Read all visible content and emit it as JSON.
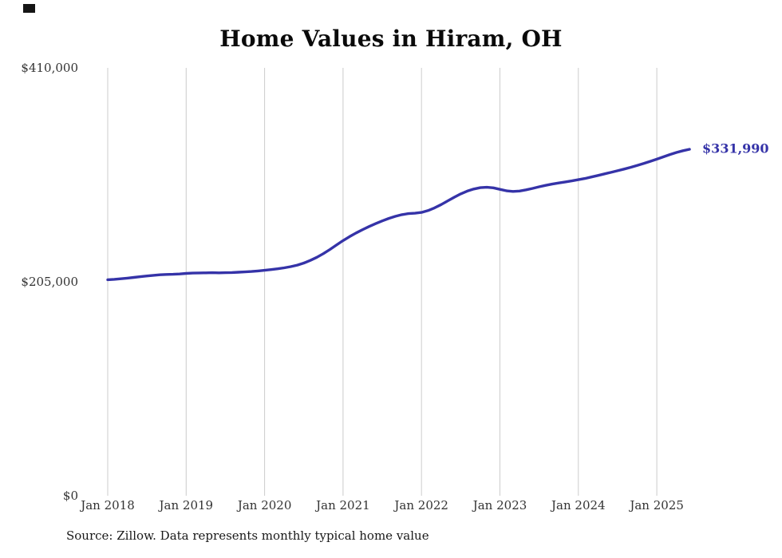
{
  "chart_data": {
    "type": "line",
    "title": "Home Values in Hiram, OH",
    "source": "Source: Zillow. Data represents monthly typical home value",
    "end_label": "$331,990",
    "line_color": "#3533a8",
    "grid_color": "#cccccc",
    "grid": "vertical-only",
    "legend": "none",
    "x_start": "Jan 2018",
    "x_interval": "monthly",
    "x_ticks": [
      "Jan 2018",
      "Jan 2019",
      "Jan 2020",
      "Jan 2021",
      "Jan 2022",
      "Jan 2023",
      "Jan 2024",
      "Jan 2025"
    ],
    "ylim": [
      0,
      410000
    ],
    "y_ticks": [
      {
        "value": 0,
        "label": "$0"
      },
      {
        "value": 205000,
        "label": "$205,000"
      },
      {
        "value": 410000,
        "label": "$410,000"
      }
    ],
    "series": [
      {
        "name": "Typical home value",
        "values": [
          207000,
          207400,
          207900,
          208500,
          209200,
          209900,
          210600,
          211200,
          211700,
          212000,
          212200,
          212500,
          213000,
          213300,
          213500,
          213600,
          213700,
          213600,
          213700,
          213900,
          214200,
          214500,
          214900,
          215400,
          216000,
          216700,
          217500,
          218400,
          219500,
          221000,
          223000,
          225500,
          228500,
          232000,
          236000,
          240300,
          244500,
          248300,
          251800,
          255000,
          258000,
          260800,
          263400,
          265700,
          267700,
          269300,
          270300,
          270700,
          271500,
          273200,
          275800,
          279000,
          282500,
          286000,
          289200,
          291900,
          293900,
          295200,
          295600,
          295000,
          293600,
          292200,
          291600,
          292000,
          293100,
          294500,
          296000,
          297400,
          298600,
          299700,
          300700,
          301700,
          302800,
          304000,
          305400,
          306900,
          308400,
          309900,
          311400,
          313000,
          314700,
          316500,
          318400,
          320400,
          322500,
          324700,
          326900,
          328900,
          330600,
          331990
        ]
      }
    ]
  }
}
